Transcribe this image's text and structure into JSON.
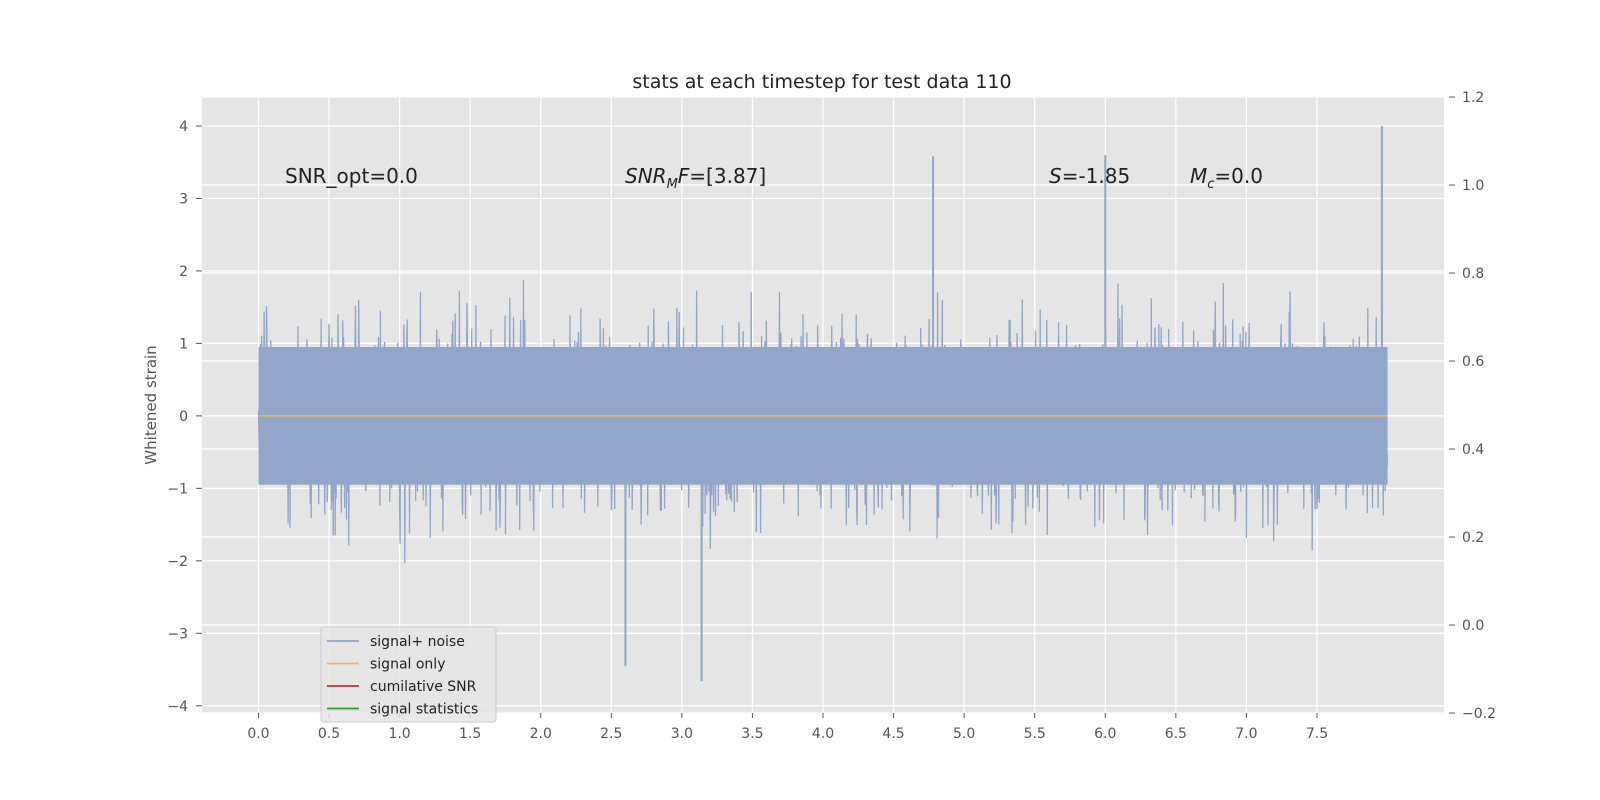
{
  "chart_data": {
    "type": "line",
    "title": "stats at each timestep for test data 110",
    "xlabel": "",
    "ylabel": "Whitened strain",
    "xlim": [
      -0.4,
      8.4
    ],
    "ylim": [
      -4.1,
      4.4
    ],
    "y2lim": [
      -0.2,
      1.2
    ],
    "x_ticks": [
      0.0,
      0.5,
      1.0,
      1.5,
      2.0,
      2.5,
      3.0,
      3.5,
      4.0,
      4.5,
      5.0,
      5.5,
      6.0,
      6.5,
      7.0,
      7.5
    ],
    "x_tick_labels": [
      "0.0",
      "0.5",
      "1.0",
      "1.5",
      "2.0",
      "2.5",
      "3.0",
      "3.5",
      "4.0",
      "4.5",
      "5.0",
      "5.5",
      "6.0",
      "6.5",
      "7.0",
      "7.5"
    ],
    "y_ticks": [
      4,
      3,
      2,
      1,
      0,
      -1,
      -2,
      -3,
      -4
    ],
    "y_tick_labels": [
      "4",
      "3",
      "2",
      "1",
      "0",
      "−1",
      "−2",
      "−3",
      "−4"
    ],
    "y2_ticks": [
      1.2,
      1.0,
      0.8,
      0.6,
      0.4,
      0.2,
      0.0,
      -0.2
    ],
    "y2_tick_labels": [
      "1.2",
      "1.0",
      "0.8",
      "0.6",
      "0.4",
      "0.2",
      "0.0",
      "−0.2"
    ],
    "grid": true,
    "legend_position": "lower-left",
    "annotations": {
      "snr_opt": "SNR_opt=0.0",
      "snr_mf_main": "SNR",
      "snr_mf_sub": "M",
      "snr_mf_rest": "F=[3.87]",
      "s_label": "S",
      "s_value": "=-1.85",
      "mc_label": "M",
      "mc_sub": "c",
      "mc_value": "=0.0"
    },
    "series": [
      {
        "name": "signal+ noise",
        "color": "#92a6c9",
        "x_range": [
          0.0,
          8.0
        ],
        "y_range": [
          -3.66,
          4.0
        ],
        "description_note": "dense noise trace",
        "peaks": [
          {
            "x": 7.96,
            "y": 4.0
          },
          {
            "x": 4.78,
            "y": 3.58
          },
          {
            "x": 6.0,
            "y": 3.6
          },
          {
            "x": 3.14,
            "y": -3.66
          },
          {
            "x": 2.6,
            "y": -3.45
          }
        ]
      },
      {
        "name": "signal only",
        "color": "#e8b65e",
        "x": [
          0.0,
          8.0
        ],
        "y": [
          0.0,
          0.0
        ]
      },
      {
        "name": "cumilative SNR",
        "color": "#d62728"
      },
      {
        "name": "signal statistics",
        "color": "#2ca02c"
      }
    ]
  }
}
